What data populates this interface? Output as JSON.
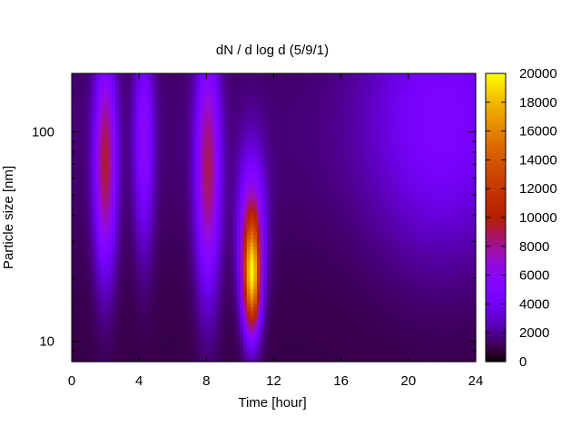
{
  "chart_data": {
    "type": "heatmap",
    "title": "dN / d log d (5/9/1)",
    "xlabel": "Time [hour]",
    "ylabel": "Particle size [nm]",
    "xlim": [
      0,
      24
    ],
    "ylim": [
      8,
      190
    ],
    "y_scale": "log",
    "x_ticks": [
      0,
      4,
      8,
      12,
      16,
      20,
      24
    ],
    "x_tick_labels": [
      "0",
      "4",
      "8",
      "12",
      "16",
      "20",
      "24"
    ],
    "y_ticks": [
      10,
      100
    ],
    "y_tick_labels": [
      "10",
      "100"
    ],
    "colorbar": {
      "range": [
        0,
        20000
      ],
      "ticks": [
        0,
        2000,
        4000,
        6000,
        8000,
        10000,
        12000,
        14000,
        16000,
        18000,
        20000
      ],
      "tick_labels": [
        "0",
        "2000",
        "4000",
        "6000",
        "8000",
        "10000",
        "12000",
        "14000",
        "16000",
        "18000",
        "20000"
      ],
      "colormap": "gnuplot (black-purple-red-yellow)"
    },
    "background_level": 1500,
    "features": [
      {
        "time_h": 2.0,
        "size_nm": 70,
        "peak": 8000,
        "time_width_h": 0.45,
        "log_size_width": 0.35
      },
      {
        "time_h": 4.3,
        "size_nm": 90,
        "peak": 4500,
        "time_width_h": 0.4,
        "log_size_width": 0.35
      },
      {
        "time_h": 8.1,
        "size_nm": 65,
        "peak": 7500,
        "time_width_h": 0.5,
        "log_size_width": 0.4
      },
      {
        "time_h": 10.7,
        "size_nm": 20,
        "peak": 15000,
        "time_width_h": 0.35,
        "log_size_width": 0.18
      },
      {
        "time_h": 10.7,
        "size_nm": 35,
        "peak": 6000,
        "time_width_h": 0.55,
        "log_size_width": 0.25
      },
      {
        "time_h": 22.0,
        "size_nm": 120,
        "peak": 3500,
        "time_width_h": 3.0,
        "log_size_width": 0.45
      }
    ]
  }
}
